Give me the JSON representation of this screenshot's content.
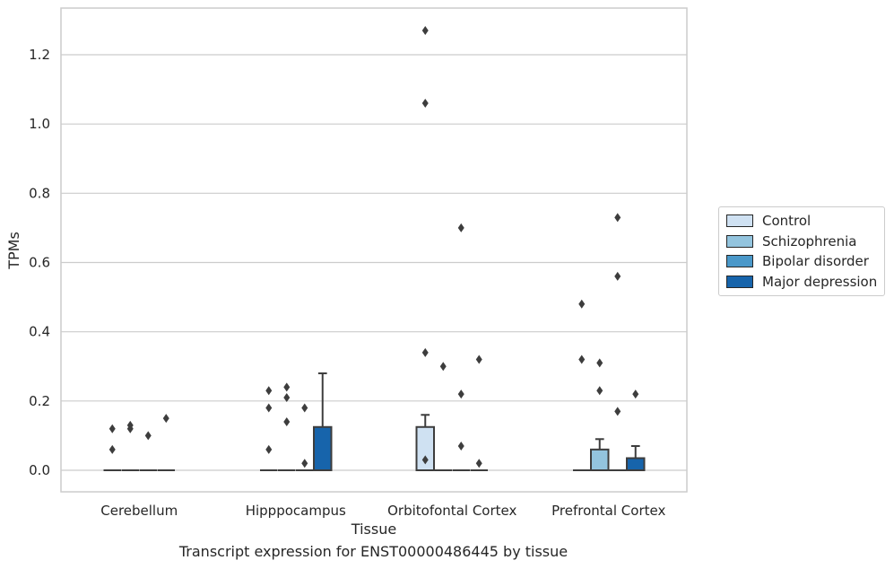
{
  "caption": "Transcript expression for ENST00000486445 by tissue",
  "chart_data": {
    "type": "box",
    "title": "",
    "xlabel": "Tissue",
    "ylabel": "TPMs",
    "ylim": [
      -0.062,
      1.335
    ],
    "yticks": [
      0.0,
      0.2,
      0.4,
      0.6,
      0.8,
      1.0,
      1.2
    ],
    "ytick_labels": [
      "0.0",
      "0.2",
      "0.4",
      "0.6",
      "0.8",
      "1.0",
      "1.2"
    ],
    "grid": "horizontal",
    "legend_position": "right",
    "categories": [
      "Cerebellum",
      "Hipppocampus",
      "Orbitofontal Cortex",
      "Prefrontal Cortex"
    ],
    "series": [
      {
        "name": "Control",
        "color": "#cfe1f2",
        "boxes": [
          {
            "q1": 0,
            "median": 0,
            "q3": 0,
            "whisker_low": 0,
            "whisker_high": 0,
            "outliers": [
              0.12,
              0.06
            ]
          },
          {
            "q1": 0,
            "median": 0,
            "q3": 0,
            "whisker_low": 0,
            "whisker_high": 0,
            "outliers": [
              0.23,
              0.18,
              0.06
            ]
          },
          {
            "q1": 0,
            "median": 0,
            "q3": 0.125,
            "whisker_low": 0,
            "whisker_high": 0.16,
            "outliers": [
              1.27,
              1.06,
              0.34,
              0.03
            ]
          },
          {
            "q1": 0,
            "median": 0,
            "q3": 0,
            "whisker_low": 0,
            "whisker_high": 0,
            "outliers": [
              0.48,
              0.32
            ]
          }
        ]
      },
      {
        "name": "Schizophrenia",
        "color": "#93c4de",
        "boxes": [
          {
            "q1": 0,
            "median": 0,
            "q3": 0,
            "whisker_low": 0,
            "whisker_high": 0,
            "outliers": [
              0.13,
              0.12
            ]
          },
          {
            "q1": 0,
            "median": 0,
            "q3": 0,
            "whisker_low": 0,
            "whisker_high": 0,
            "outliers": [
              0.24,
              0.21,
              0.14
            ]
          },
          {
            "q1": 0,
            "median": 0,
            "q3": 0,
            "whisker_low": 0,
            "whisker_high": 0,
            "outliers": [
              0.3
            ]
          },
          {
            "q1": 0,
            "median": 0,
            "q3": 0.06,
            "whisker_low": 0,
            "whisker_high": 0.09,
            "outliers": [
              0.31,
              0.23
            ]
          }
        ]
      },
      {
        "name": "Bipolar disorder",
        "color": "#4a98c9",
        "boxes": [
          {
            "q1": 0,
            "median": 0,
            "q3": 0,
            "whisker_low": 0,
            "whisker_high": 0,
            "outliers": [
              0.1
            ]
          },
          {
            "q1": 0,
            "median": 0,
            "q3": 0,
            "whisker_low": 0,
            "whisker_high": 0,
            "outliers": [
              0.18,
              0.02
            ]
          },
          {
            "q1": 0,
            "median": 0,
            "q3": 0,
            "whisker_low": 0,
            "whisker_high": 0,
            "outliers": [
              0.7,
              0.22,
              0.07
            ]
          },
          {
            "q1": 0,
            "median": 0,
            "q3": 0,
            "whisker_low": 0,
            "whisker_high": 0,
            "outliers": [
              0.73,
              0.56,
              0.17
            ]
          }
        ]
      },
      {
        "name": "Major depression",
        "color": "#1764ab",
        "boxes": [
          {
            "q1": 0,
            "median": 0,
            "q3": 0,
            "whisker_low": 0,
            "whisker_high": 0,
            "outliers": [
              0.15
            ]
          },
          {
            "q1": 0,
            "median": 0,
            "q3": 0.125,
            "whisker_low": 0,
            "whisker_high": 0.28,
            "outliers": []
          },
          {
            "q1": 0,
            "median": 0,
            "q3": 0,
            "whisker_low": 0,
            "whisker_high": 0,
            "outliers": [
              0.32,
              0.02
            ]
          },
          {
            "q1": 0,
            "median": 0,
            "q3": 0.035,
            "whisker_low": 0,
            "whisker_high": 0.07,
            "outliers": [
              0.22
            ]
          }
        ]
      }
    ]
  }
}
